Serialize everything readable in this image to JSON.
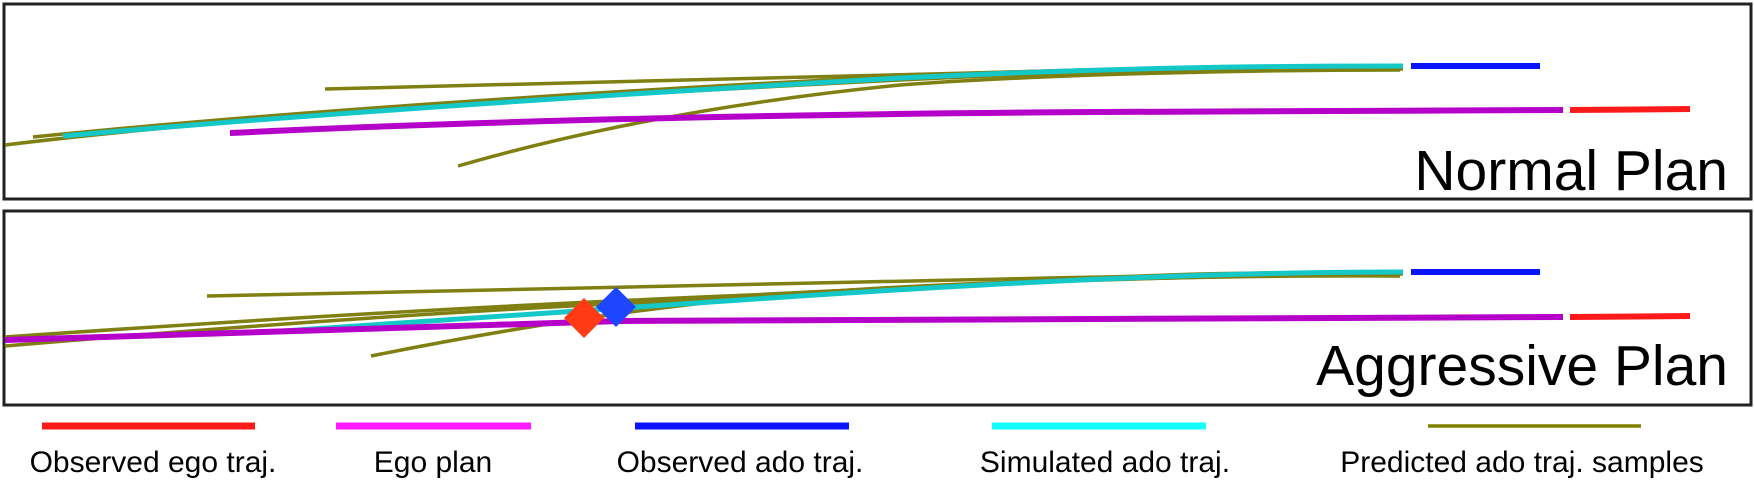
{
  "panels": [
    {
      "title": "Normal Plan"
    },
    {
      "title": "Aggressive Plan"
    }
  ],
  "legend": [
    {
      "label": "Observed ego traj.",
      "color": "#ff1a1a",
      "icon": "red-line-icon"
    },
    {
      "label": "Ego plan",
      "color": "#ff1aff",
      "icon": "magenta-line-icon"
    },
    {
      "label": "Observed ado traj.",
      "color": "#0a14ff",
      "icon": "blue-line-icon"
    },
    {
      "label": "Simulated ado traj.",
      "color": "#14ffff",
      "icon": "cyan-line-icon"
    },
    {
      "label": "Predicted ado traj. samples",
      "color": "#808000",
      "icon": "olive-line-icon"
    }
  ],
  "colors": {
    "observed_ego": "#ff1a1a",
    "ego_plan_drawn": "#b400c8",
    "observed_ado": "#0a14ff",
    "simulated_ado": "#14c8c8",
    "predicted_samples": "#7f7f12",
    "ego_marker": "#ff3a14",
    "ado_marker": "#1e46ff"
  },
  "markers": [
    {
      "name": "ego-position-marker",
      "shape": "diamond"
    },
    {
      "name": "ado-position-marker",
      "shape": "diamond"
    }
  ]
}
